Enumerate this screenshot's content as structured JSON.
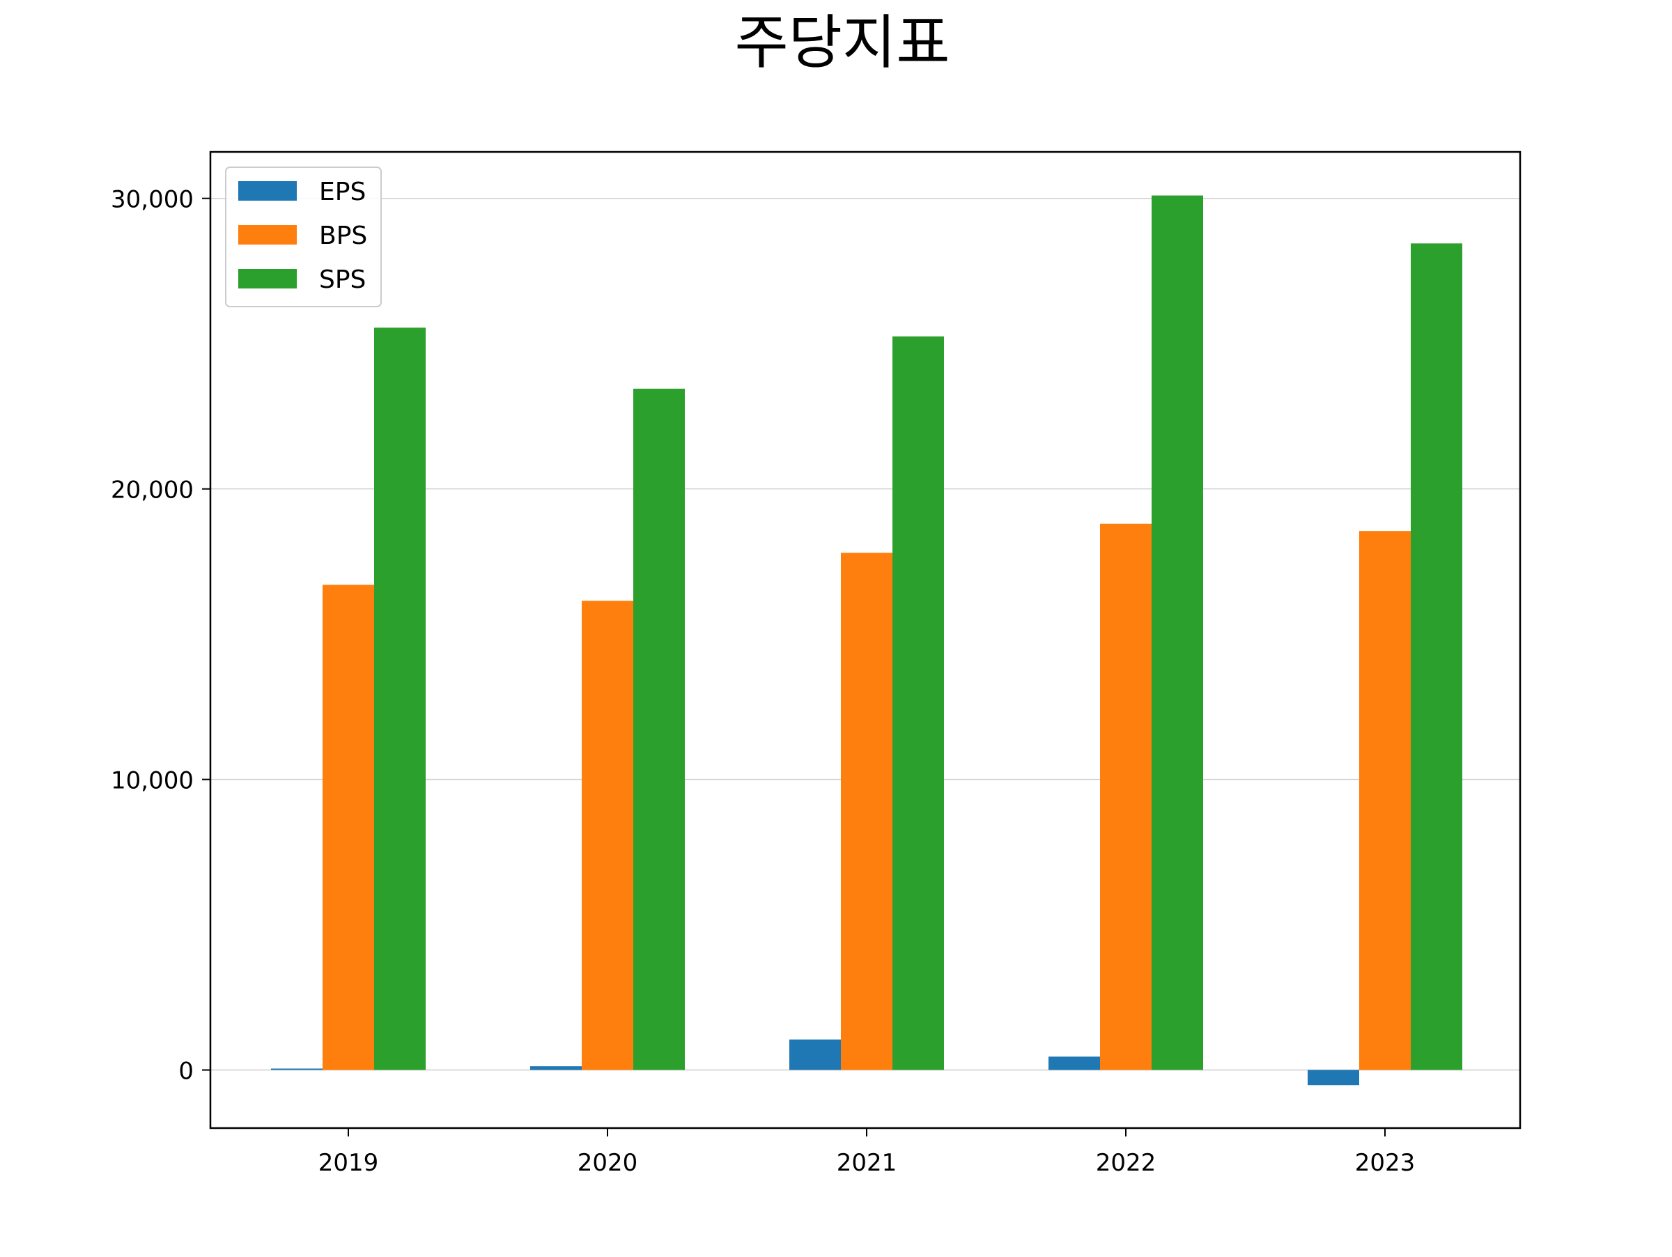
{
  "chart_data": {
    "type": "bar",
    "title": "주당지표",
    "xlabel": "",
    "ylabel": "",
    "categories": [
      "2019",
      "2020",
      "2021",
      "2022",
      "2023"
    ],
    "series": [
      {
        "name": "EPS",
        "color": "#1f77b4",
        "values": [
          50,
          130,
          1050,
          460,
          -520
        ]
      },
      {
        "name": "BPS",
        "color": "#ff7f0e",
        "values": [
          16700,
          16150,
          17800,
          18800,
          18550
        ]
      },
      {
        "name": "SPS",
        "color": "#2ca02c",
        "values": [
          25550,
          23450,
          25250,
          30100,
          28450
        ]
      }
    ],
    "ylim": [
      -2000,
      31600
    ],
    "yticks": [
      0,
      10000,
      20000,
      30000
    ],
    "ytick_labels": [
      "0",
      "10,000",
      "20,000",
      "30,000"
    ],
    "grid": "horizontal",
    "legend_position": "top-left"
  }
}
